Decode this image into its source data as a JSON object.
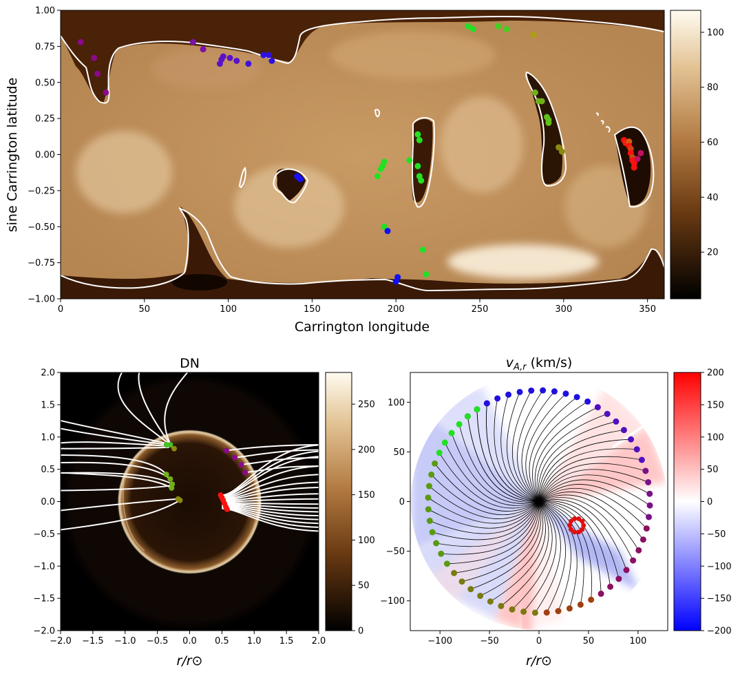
{
  "chart_data": [
    {
      "id": "top-map",
      "type": "heatmap",
      "title": "",
      "xlabel": "Carrington longitude",
      "ylabel": "sine Carrington latitude",
      "xlim": [
        0,
        360
      ],
      "ylim": [
        -1,
        1
      ],
      "xticks": [
        0,
        50,
        100,
        150,
        200,
        250,
        300,
        350
      ],
      "yticks": [
        -1.0,
        -0.75,
        -0.5,
        -0.25,
        0.0,
        0.25,
        0.5,
        0.75,
        1.0
      ],
      "ytick_labels": [
        "−1.00",
        "−0.75",
        "−0.50",
        "−0.25",
        "0.00",
        "0.25",
        "0.50",
        "0.75",
        "1.00"
      ],
      "colorbar": {
        "range": [
          3,
          108
        ],
        "ticks": [
          20,
          40,
          60,
          80,
          100
        ],
        "colormap": "copper-to-white"
      },
      "points": [
        {
          "x": 12,
          "y": 0.78,
          "c": "#8a0a8a"
        },
        {
          "x": 20,
          "y": 0.67,
          "c": "#8a0a8a"
        },
        {
          "x": 22,
          "y": 0.56,
          "c": "#8a0a8a"
        },
        {
          "x": 27,
          "y": 0.43,
          "c": "#8a0a8a"
        },
        {
          "x": 79,
          "y": 0.78,
          "c": "#7a12a8"
        },
        {
          "x": 85,
          "y": 0.73,
          "c": "#7a12a8"
        },
        {
          "x": 95,
          "y": 0.63,
          "c": "#5a12c8"
        },
        {
          "x": 96,
          "y": 0.66,
          "c": "#5a12c8"
        },
        {
          "x": 97,
          "y": 0.68,
          "c": "#5a12c8"
        },
        {
          "x": 101,
          "y": 0.67,
          "c": "#5a12c8"
        },
        {
          "x": 105,
          "y": 0.65,
          "c": "#5a12c8"
        },
        {
          "x": 112,
          "y": 0.63,
          "c": "#4012d8"
        },
        {
          "x": 121,
          "y": 0.69,
          "c": "#3010e0"
        },
        {
          "x": 124,
          "y": 0.69,
          "c": "#3010e0"
        },
        {
          "x": 126,
          "y": 0.65,
          "c": "#3010e0"
        },
        {
          "x": 141,
          "y": -0.15,
          "c": "#1a10f0"
        },
        {
          "x": 142,
          "y": -0.16,
          "c": "#1a10f0"
        },
        {
          "x": 143,
          "y": -0.17,
          "c": "#1a10f0"
        },
        {
          "x": 189,
          "y": -0.15,
          "c": "#22e022"
        },
        {
          "x": 191,
          "y": -0.1,
          "c": "#22e022"
        },
        {
          "x": 192,
          "y": -0.08,
          "c": "#22e022"
        },
        {
          "x": 193,
          "y": -0.05,
          "c": "#22e022"
        },
        {
          "x": 193,
          "y": -0.5,
          "c": "#22e022"
        },
        {
          "x": 195,
          "y": -0.53,
          "c": "#1010f0"
        },
        {
          "x": 200,
          "y": -0.88,
          "c": "#1010f0"
        },
        {
          "x": 201,
          "y": -0.85,
          "c": "#1010f0"
        },
        {
          "x": 208,
          "y": -0.04,
          "c": "#22e022"
        },
        {
          "x": 213,
          "y": 0.14,
          "c": "#22e022"
        },
        {
          "x": 214,
          "y": 0.1,
          "c": "#22e022"
        },
        {
          "x": 213,
          "y": -0.08,
          "c": "#22e022"
        },
        {
          "x": 214,
          "y": -0.15,
          "c": "#22e022"
        },
        {
          "x": 215,
          "y": -0.18,
          "c": "#22e022"
        },
        {
          "x": 216,
          "y": -0.66,
          "c": "#22e022"
        },
        {
          "x": 218,
          "y": -0.83,
          "c": "#22e022"
        },
        {
          "x": 243,
          "y": 0.89,
          "c": "#22e022"
        },
        {
          "x": 246,
          "y": 0.87,
          "c": "#22e022"
        },
        {
          "x": 261,
          "y": 0.89,
          "c": "#44d020"
        },
        {
          "x": 266,
          "y": 0.87,
          "c": "#44d020"
        },
        {
          "x": 282,
          "y": 0.83,
          "c": "#aaa010"
        },
        {
          "x": 283,
          "y": 0.43,
          "c": "#70b018"
        },
        {
          "x": 285,
          "y": 0.37,
          "c": "#70b018"
        },
        {
          "x": 287,
          "y": 0.37,
          "c": "#70b018"
        },
        {
          "x": 290,
          "y": 0.26,
          "c": "#60c018"
        },
        {
          "x": 291,
          "y": 0.24,
          "c": "#60c018"
        },
        {
          "x": 291,
          "y": 0.22,
          "c": "#60c018"
        },
        {
          "x": 297,
          "y": 0.05,
          "c": "#8a8a10"
        },
        {
          "x": 299,
          "y": 0.02,
          "c": "#8a8a10"
        },
        {
          "x": 336,
          "y": 0.1,
          "c": "#ff1010"
        },
        {
          "x": 337,
          "y": 0.08,
          "c": "#f02010"
        },
        {
          "x": 339,
          "y": 0.09,
          "c": "#d06010"
        },
        {
          "x": 339,
          "y": 0.06,
          "c": "#ff1010"
        },
        {
          "x": 340,
          "y": 0.04,
          "c": "#d04010"
        },
        {
          "x": 340,
          "y": 0.01,
          "c": "#ff1010"
        },
        {
          "x": 341,
          "y": -0.02,
          "c": "#c05010"
        },
        {
          "x": 341,
          "y": -0.04,
          "c": "#ff1010"
        },
        {
          "x": 342,
          "y": -0.06,
          "c": "#ff1010"
        },
        {
          "x": 342,
          "y": -0.09,
          "c": "#ff1010"
        },
        {
          "x": 344,
          "y": -0.03,
          "c": "#c01060"
        },
        {
          "x": 346,
          "y": 0.01,
          "c": "#c01060"
        }
      ]
    },
    {
      "id": "dn-image",
      "type": "heatmap",
      "title": "DN",
      "xlabel": "r/r⊙",
      "ylabel": "",
      "xlim": [
        -2,
        2
      ],
      "ylim": [
        -2,
        2
      ],
      "xticks": [
        -2.0,
        -1.5,
        -1.0,
        -0.5,
        0.0,
        0.5,
        1.0,
        1.5,
        2.0
      ],
      "xtick_labels": [
        "−2.0",
        "−1.5",
        "−1.0",
        "−0.5",
        "0.0",
        "0.5",
        "1.0",
        "1.5",
        "2.0"
      ],
      "yticks": [
        -2.0,
        -1.5,
        -1.0,
        -0.5,
        0.0,
        0.5,
        1.0,
        1.5,
        2.0
      ],
      "ytick_labels": [
        "−2.0",
        "−1.5",
        "−1.0",
        "−0.5",
        "0.0",
        "0.5",
        "1.0",
        "1.5",
        "2.0"
      ],
      "colorbar": {
        "range": [
          0,
          285
        ],
        "ticks": [
          0,
          50,
          100,
          150,
          200,
          250
        ],
        "colormap": "copper-to-white"
      },
      "points": [
        {
          "x": -0.36,
          "y": 0.88,
          "c": "#44c020"
        },
        {
          "x": -0.3,
          "y": 0.88,
          "c": "#44c020"
        },
        {
          "x": -0.24,
          "y": 0.82,
          "c": "#8a8a10"
        },
        {
          "x": -0.36,
          "y": 0.42,
          "c": "#70b018"
        },
        {
          "x": -0.3,
          "y": 0.35,
          "c": "#70b018"
        },
        {
          "x": -0.27,
          "y": 0.27,
          "c": "#70b018"
        },
        {
          "x": -0.28,
          "y": 0.21,
          "c": "#70b018"
        },
        {
          "x": -0.18,
          "y": 0.04,
          "c": "#8a8a10"
        },
        {
          "x": -0.15,
          "y": 0.02,
          "c": "#8a8a10"
        },
        {
          "x": 0.57,
          "y": 0.79,
          "c": "#8a0a8a"
        },
        {
          "x": 0.7,
          "y": 0.68,
          "c": "#8a0a8a"
        },
        {
          "x": 0.8,
          "y": 0.57,
          "c": "#8a0a8a"
        },
        {
          "x": 0.86,
          "y": 0.45,
          "c": "#8a0a8a"
        },
        {
          "x": 0.48,
          "y": 0.1,
          "c": "#ff1010"
        },
        {
          "x": 0.5,
          "y": 0.06,
          "c": "#ff1010"
        },
        {
          "x": 0.52,
          "y": 0.02,
          "c": "#ff1010"
        },
        {
          "x": 0.54,
          "y": -0.03,
          "c": "#ff1010"
        },
        {
          "x": 0.56,
          "y": -0.08,
          "c": "#ff1010"
        },
        {
          "x": 0.58,
          "y": -0.12,
          "c": "#ff1010"
        }
      ]
    },
    {
      "id": "va-plot",
      "type": "heatmap",
      "title": "v_{A,r} (km/s)",
      "xlabel": "r/r⊙",
      "ylabel": "",
      "xlim": [
        -130,
        130
      ],
      "ylim": [
        -130,
        130
      ],
      "xticks": [
        -100,
        -50,
        0,
        50,
        100
      ],
      "xtick_labels": [
        "−100",
        "−50",
        "0",
        "50",
        "100"
      ],
      "yticks": [
        -100,
        -50,
        0,
        50,
        100
      ],
      "ytick_labels": [
        "−100",
        "−50",
        "0",
        "50",
        "100"
      ],
      "colorbar": {
        "range": [
          -200,
          200
        ],
        "ticks": [
          -200,
          -150,
          -100,
          -50,
          0,
          50,
          100,
          150,
          200
        ],
        "tick_labels": [
          "−200",
          "−150",
          "−100",
          "−50",
          "0",
          "50",
          "100",
          "150",
          "200"
        ],
        "colormap": "bwr"
      }
    }
  ]
}
